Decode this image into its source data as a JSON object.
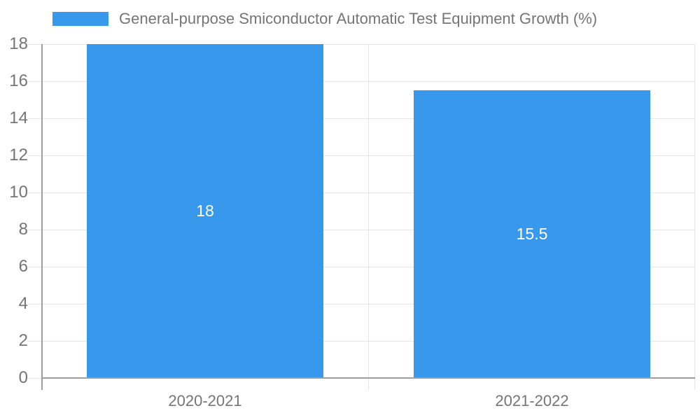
{
  "chart_data": {
    "type": "bar",
    "title": "",
    "legend": "General-purpose Smiconductor Automatic Test Equipment Growth (%)",
    "legend_position": "top-left",
    "categories": [
      "2020-2021",
      "2021-2022"
    ],
    "values": [
      18,
      15.5
    ],
    "value_labels": [
      "18",
      "15.5"
    ],
    "xlabel": "",
    "ylabel": "",
    "ylim": [
      0,
      18
    ],
    "yticks": [
      0,
      2,
      4,
      6,
      8,
      10,
      12,
      14,
      16,
      18
    ],
    "grid": true,
    "colors": {
      "bar": "#3898ec",
      "grid": "#e6e6e6",
      "grid_tick": "#dcdcdc",
      "axis": "#9e9e9e",
      "tick_text": "#757575",
      "legend_text": "#757575",
      "value_text": "#ffffff",
      "background": "#ffffff"
    }
  }
}
